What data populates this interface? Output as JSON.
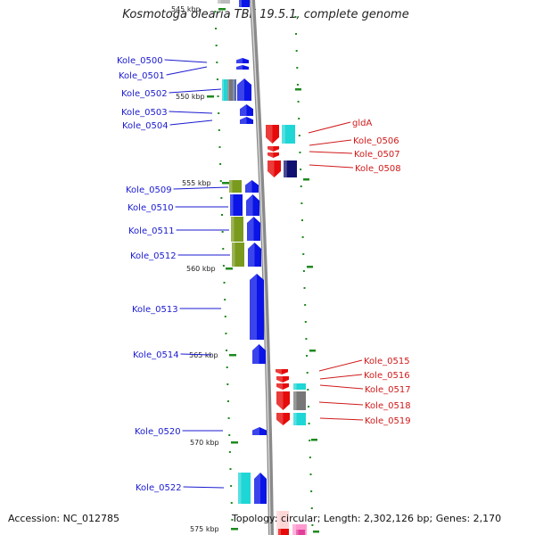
{
  "title": "Kosmotoga olearia TBF 19.5.1, complete genome",
  "accession": "Accession: NC_012785",
  "topology": "Topology: circular; Length: 2,302,126 bp; Genes: 2,170",
  "scale_labels": [
    "545 kbp",
    "550 kbp",
    "555 kbp",
    "560 kbp",
    "565 kbp",
    "570 kbp",
    "575 kbp"
  ],
  "left_genes": [
    "Kole_0500",
    "Kole_0501",
    "Kole_0502",
    "Kole_0503",
    "Kole_0504",
    "Kole_0509",
    "Kole_0510",
    "Kole_0511",
    "Kole_0512",
    "Kole_0513",
    "Kole_0514",
    "Kole_0520",
    "Kole_0522"
  ],
  "right_genes": [
    "gldA",
    "Kole_0506",
    "Kole_0507",
    "Kole_0508",
    "Kole_0515",
    "Kole_0516",
    "Kole_0517",
    "Kole_0518",
    "Kole_0519"
  ],
  "colors": {
    "forward": "#0a14e6",
    "reverse": "#e60a0a",
    "cyan": "#1fd6d6",
    "olive": "#7a9a1e",
    "grey": "#777777",
    "navy": "#101070",
    "tick": "#1e8a1e",
    "backbone": "#9a9a9a"
  }
}
